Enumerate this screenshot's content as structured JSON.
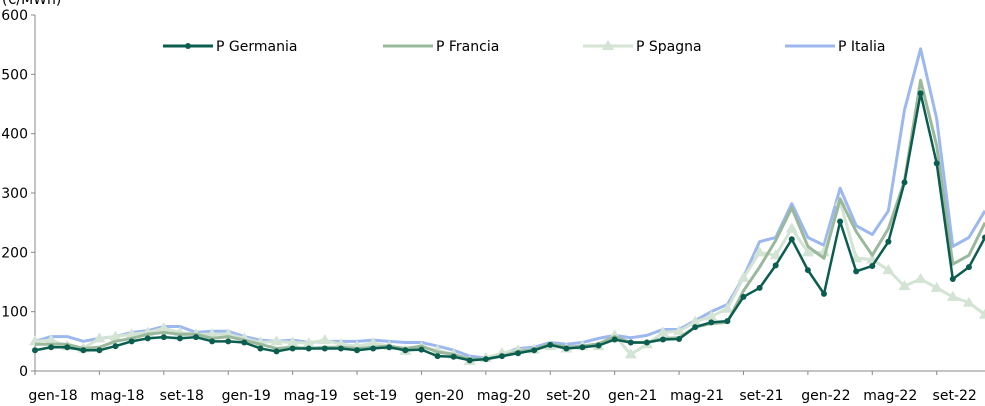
{
  "chart_data": {
    "type": "line",
    "y_label": "(€/MWh)",
    "categories": [
      "gen-18",
      null,
      null,
      null,
      "mag-18",
      null,
      null,
      null,
      "set-18",
      null,
      null,
      null,
      "gen-19",
      null,
      null,
      null,
      "mag-19",
      null,
      null,
      null,
      "set-19",
      null,
      null,
      null,
      "gen-20",
      null,
      null,
      null,
      "mag-20",
      null,
      null,
      null,
      "set-20",
      null,
      null,
      null,
      "gen-21",
      null,
      null,
      null,
      "mag-21",
      null,
      null,
      null,
      "set-21",
      null,
      null,
      null,
      "gen-22",
      null,
      null,
      null,
      "mag-22",
      null,
      null,
      null,
      "set-22",
      null,
      null,
      null
    ],
    "ylim": [
      0,
      600
    ],
    "yticks": [
      0,
      100,
      200,
      300,
      400,
      500,
      600
    ],
    "series": [
      {
        "name": "P Germania",
        "color": "#0b5e4f",
        "marker": "circle",
        "values": [
          35,
          40,
          40,
          35,
          35,
          42,
          50,
          55,
          57,
          55,
          57,
          50,
          50,
          48,
          38,
          33,
          38,
          38,
          38,
          38,
          35,
          38,
          40,
          35,
          36,
          25,
          24,
          18,
          20,
          25,
          30,
          35,
          44,
          38,
          40,
          43,
          53,
          48,
          48,
          53,
          54,
          74,
          82,
          84,
          125,
          140,
          178,
          222,
          170,
          130,
          252,
          168,
          177,
          218,
          318,
          468,
          350,
          155,
          175,
          225
        ]
      },
      {
        "name": "P Francia",
        "color": "#9ab89c",
        "marker": null,
        "values": [
          45,
          45,
          45,
          38,
          40,
          50,
          55,
          62,
          65,
          62,
          62,
          55,
          58,
          52,
          45,
          38,
          40,
          38,
          40,
          40,
          38,
          40,
          42,
          38,
          42,
          32,
          28,
          20,
          20,
          25,
          33,
          36,
          46,
          40,
          42,
          46,
          58,
          48,
          48,
          55,
          56,
          74,
          80,
          82,
          135,
          175,
          220,
          275,
          210,
          190,
          290,
          235,
          195,
          240,
          320,
          490,
          380,
          180,
          195,
          250
        ]
      },
      {
        "name": "P Spagna",
        "color": "#d3e3d4",
        "marker": "triangle",
        "values": [
          50,
          52,
          42,
          38,
          55,
          58,
          62,
          65,
          72,
          65,
          62,
          62,
          62,
          55,
          48,
          50,
          48,
          47,
          52,
          45,
          42,
          47,
          42,
          34,
          40,
          35,
          28,
          17,
          22,
          30,
          35,
          36,
          42,
          38,
          42,
          42,
          60,
          28,
          45,
          65,
          67,
          83,
          92,
          105,
          157,
          200,
          195,
          240,
          200,
          200,
          285,
          190,
          188,
          170,
          143,
          155,
          140,
          125,
          115,
          95
        ]
      },
      {
        "name": "P Italia",
        "color": "#9db8ef",
        "marker": null,
        "values": [
          50,
          58,
          58,
          50,
          55,
          58,
          65,
          68,
          75,
          75,
          65,
          67,
          67,
          58,
          52,
          50,
          52,
          48,
          50,
          50,
          50,
          52,
          50,
          48,
          48,
          42,
          35,
          25,
          22,
          28,
          38,
          40,
          48,
          45,
          48,
          55,
          60,
          56,
          60,
          70,
          70,
          85,
          100,
          112,
          158,
          218,
          225,
          282,
          225,
          212,
          308,
          245,
          230,
          270,
          440,
          543,
          425,
          210,
          225,
          270
        ]
      }
    ]
  }
}
